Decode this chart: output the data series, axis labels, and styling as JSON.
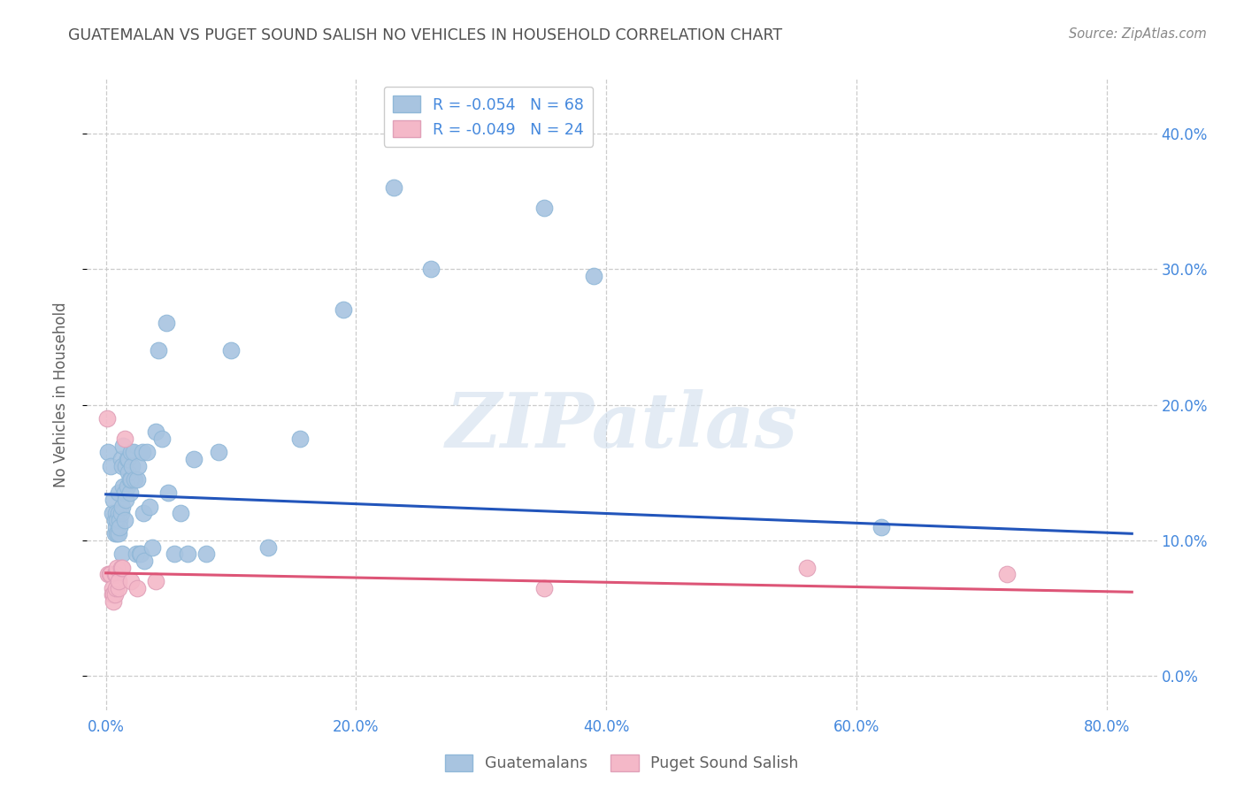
{
  "title": "GUATEMALAN VS PUGET SOUND SALISH NO VEHICLES IN HOUSEHOLD CORRELATION CHART",
  "source": "Source: ZipAtlas.com",
  "xlabel_ticks": [
    "0.0%",
    "20.0%",
    "40.0%",
    "60.0%",
    "80.0%"
  ],
  "xlabel_tick_vals": [
    0.0,
    0.2,
    0.4,
    0.6,
    0.8
  ],
  "ylabel_ticks": [
    "0.0%",
    "10.0%",
    "20.0%",
    "30.0%",
    "40.0%"
  ],
  "ylabel_tick_vals": [
    0.0,
    0.1,
    0.2,
    0.3,
    0.4
  ],
  "ylabel": "No Vehicles in Household",
  "xlim": [
    -0.015,
    0.84
  ],
  "ylim": [
    -0.025,
    0.44
  ],
  "blue_color": "#a8c4e0",
  "pink_color": "#f4b8c8",
  "blue_line_color": "#2255bb",
  "pink_line_color": "#dd5577",
  "legend_r_blue": "R = -0.054",
  "legend_n_blue": "N = 68",
  "legend_r_pink": "R = -0.049",
  "legend_n_pink": "N = 24",
  "watermark": "ZIPatlas",
  "blue_points_x": [
    0.002,
    0.004,
    0.005,
    0.006,
    0.007,
    0.007,
    0.008,
    0.008,
    0.009,
    0.009,
    0.01,
    0.01,
    0.01,
    0.011,
    0.011,
    0.012,
    0.012,
    0.013,
    0.013,
    0.013,
    0.014,
    0.014,
    0.015,
    0.015,
    0.016,
    0.016,
    0.017,
    0.017,
    0.018,
    0.018,
    0.019,
    0.019,
    0.02,
    0.02,
    0.021,
    0.022,
    0.023,
    0.024,
    0.025,
    0.026,
    0.027,
    0.028,
    0.029,
    0.03,
    0.031,
    0.033,
    0.035,
    0.037,
    0.04,
    0.042,
    0.045,
    0.048,
    0.05,
    0.055,
    0.06,
    0.065,
    0.07,
    0.08,
    0.09,
    0.1,
    0.13,
    0.155,
    0.19,
    0.23,
    0.26,
    0.35,
    0.39,
    0.62
  ],
  "blue_points_y": [
    0.165,
    0.155,
    0.12,
    0.13,
    0.115,
    0.105,
    0.11,
    0.12,
    0.115,
    0.105,
    0.135,
    0.12,
    0.105,
    0.115,
    0.11,
    0.16,
    0.12,
    0.125,
    0.155,
    0.09,
    0.17,
    0.14,
    0.115,
    0.135,
    0.155,
    0.13,
    0.16,
    0.14,
    0.15,
    0.16,
    0.135,
    0.145,
    0.165,
    0.145,
    0.155,
    0.165,
    0.145,
    0.09,
    0.145,
    0.155,
    0.09,
    0.09,
    0.165,
    0.12,
    0.085,
    0.165,
    0.125,
    0.095,
    0.18,
    0.24,
    0.175,
    0.26,
    0.135,
    0.09,
    0.12,
    0.09,
    0.16,
    0.09,
    0.165,
    0.24,
    0.095,
    0.175,
    0.27,
    0.36,
    0.3,
    0.345,
    0.295,
    0.11
  ],
  "pink_points_x": [
    0.001,
    0.002,
    0.003,
    0.004,
    0.005,
    0.005,
    0.006,
    0.006,
    0.007,
    0.007,
    0.008,
    0.008,
    0.009,
    0.01,
    0.01,
    0.012,
    0.013,
    0.015,
    0.02,
    0.025,
    0.04,
    0.35,
    0.56,
    0.72
  ],
  "pink_points_y": [
    0.19,
    0.075,
    0.075,
    0.075,
    0.065,
    0.06,
    0.06,
    0.055,
    0.075,
    0.06,
    0.075,
    0.065,
    0.08,
    0.065,
    0.07,
    0.08,
    0.08,
    0.175,
    0.07,
    0.065,
    0.07,
    0.065,
    0.08,
    0.075
  ],
  "blue_trendline_x": [
    0.0,
    0.82
  ],
  "blue_trendline_y": [
    0.134,
    0.105
  ],
  "pink_trendline_x": [
    0.0,
    0.82
  ],
  "pink_trendline_y": [
    0.076,
    0.062
  ],
  "legend_label_guatemalans": "Guatemalans",
  "legend_label_salish": "Puget Sound Salish",
  "background_color": "#ffffff",
  "grid_color": "#cccccc",
  "title_color": "#505050",
  "axis_label_color": "#4488dd",
  "ylabel_label_color": "#606060"
}
